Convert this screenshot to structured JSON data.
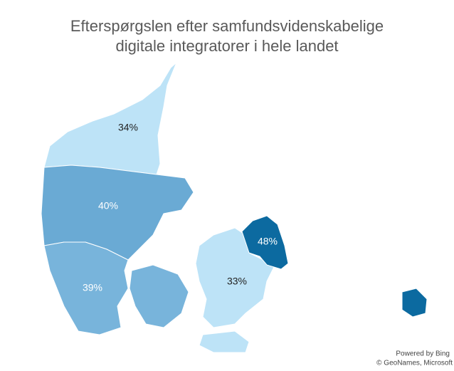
{
  "chart_data": {
    "type": "map",
    "title": [
      "Efterspørgslen efter samfundsvidenskabelige",
      "digitale integratorer i hele landet"
    ],
    "values": [
      34,
      40,
      39,
      33,
      48
    ],
    "value_labels": [
      "34%",
      "40%",
      "39%",
      "33%",
      "48%"
    ],
    "colors": [
      "#bde3f7",
      "#6aaad4",
      "#78b4db",
      "#bde3f7",
      "#0c6aa0"
    ],
    "attribution": [
      "Powered by Bing",
      "© GeoNames, Microsoft"
    ]
  }
}
